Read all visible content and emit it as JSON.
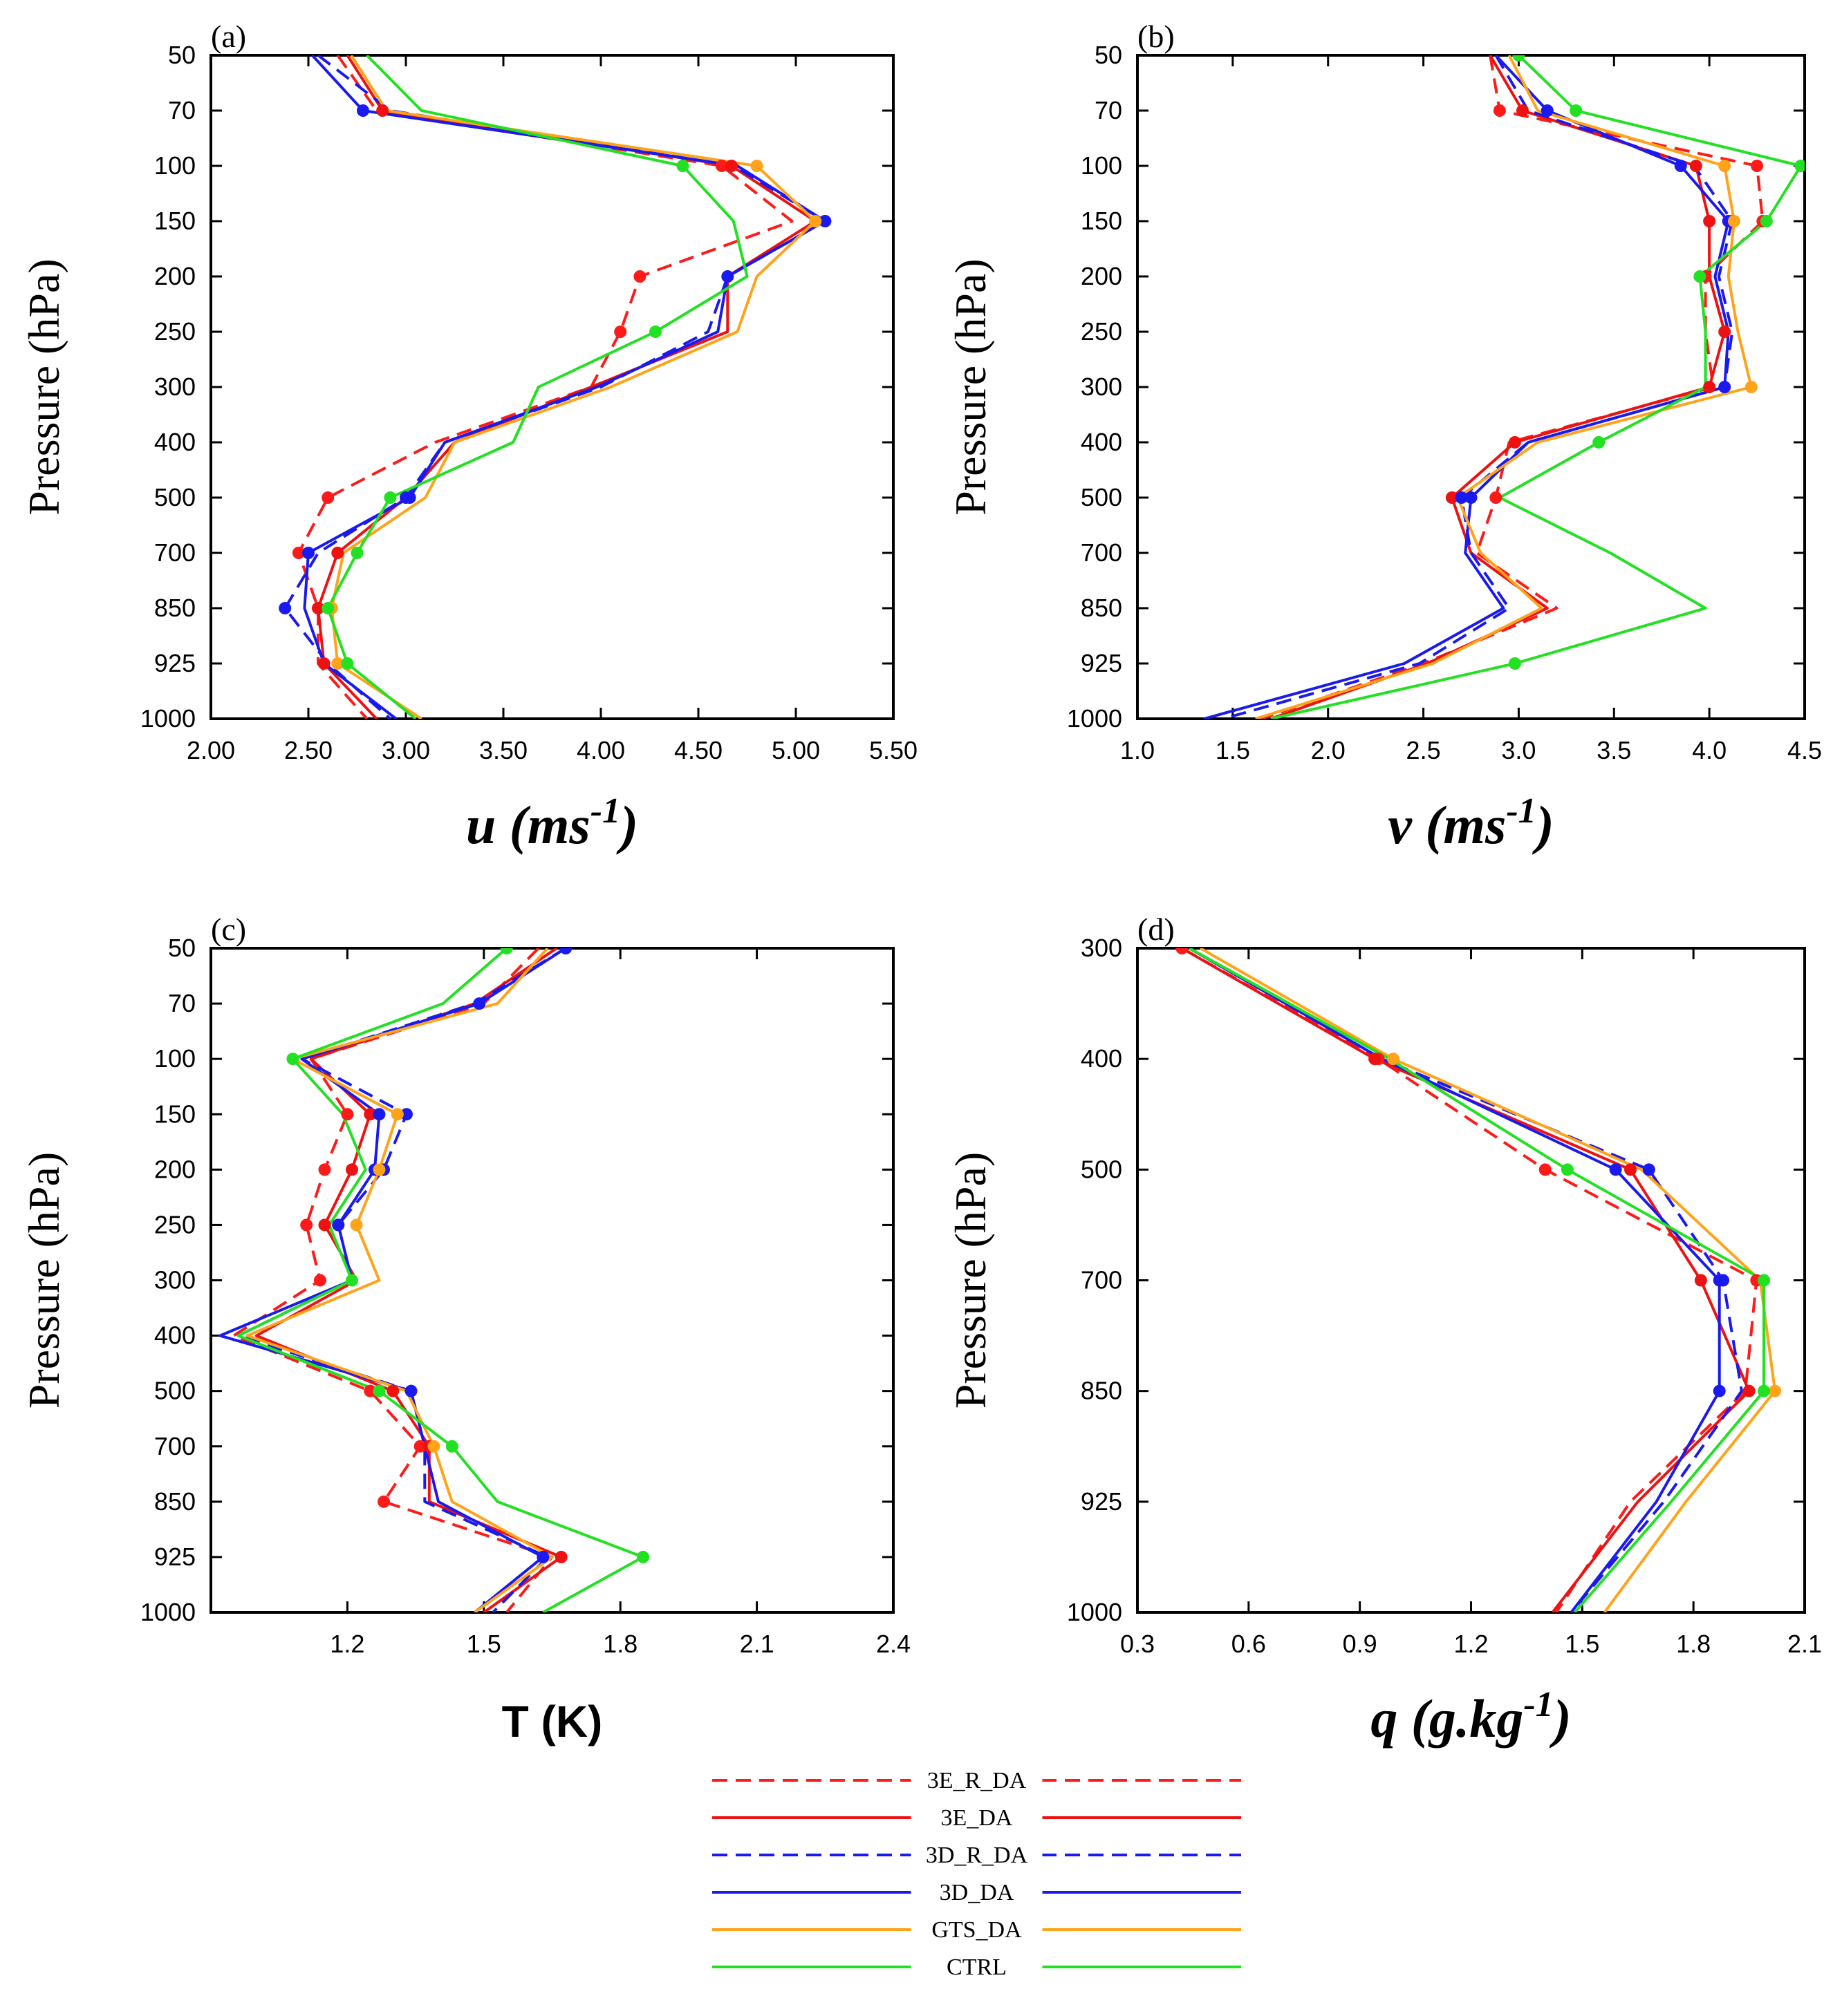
{
  "colors": {
    "3E_R_DA": "#ff1a1a",
    "3E_DA": "#ee1111",
    "3D_R_DA": "#1a1aee",
    "3D_DA": "#1a1aee",
    "GTS_DA": "#ffa31a",
    "CTRL": "#22e022"
  },
  "legend": [
    {
      "name": "3E_R_DA",
      "dash": true
    },
    {
      "name": "3E_DA",
      "dash": false
    },
    {
      "name": "3D_R_DA",
      "dash": true
    },
    {
      "name": "3D_DA",
      "dash": false
    },
    {
      "name": "GTS_DA",
      "dash": false
    },
    {
      "name": "CTRL",
      "dash": false
    }
  ],
  "chart_data": [
    {
      "type": "line",
      "panel_label": "(a)",
      "xlabel_main": "u",
      "xlabel_rest": " (ms",
      "xlabel_sup": "-1",
      "xlabel_close": ")",
      "ylabel": "Pressure (hPa)",
      "xlim": [
        2.0,
        5.5
      ],
      "xticks": [
        "2.00",
        "2.50",
        "3.00",
        "3.50",
        "4.00",
        "4.50",
        "5.00",
        "5.50"
      ],
      "xtick_values": [
        2.0,
        2.5,
        3.0,
        3.5,
        4.0,
        4.5,
        5.0,
        5.5
      ],
      "levels": [
        "50",
        "70",
        "100",
        "150",
        "200",
        "250",
        "300",
        "400",
        "500",
        "700",
        "850",
        "925",
        "1000"
      ],
      "series": [
        {
          "name": "3E_R_DA",
          "values": [
            2.65,
            2.85,
            4.62,
            4.98,
            4.2,
            4.1,
            3.95,
            3.15,
            2.6,
            2.45,
            2.55,
            2.55,
            2.8
          ],
          "markers": [
            2,
            4,
            5,
            8,
            9,
            10
          ]
        },
        {
          "name": "3E_DA",
          "values": [
            2.7,
            2.88,
            4.67,
            5.1,
            4.65,
            4.65,
            3.95,
            3.25,
            3.0,
            2.65,
            2.55,
            2.58,
            2.85
          ],
          "markers": [
            1,
            2,
            9,
            10,
            11
          ]
        },
        {
          "name": "3D_R_DA",
          "values": [
            2.55,
            2.92,
            4.68,
            5.15,
            4.65,
            4.55,
            4.0,
            3.2,
            3.0,
            2.55,
            2.38,
            2.6,
            2.92
          ],
          "markers": [
            3,
            8,
            10
          ]
        },
        {
          "name": "3D_DA",
          "values": [
            2.52,
            2.78,
            4.7,
            5.15,
            4.65,
            4.6,
            3.98,
            3.2,
            3.02,
            2.5,
            2.48,
            2.58,
            2.95
          ],
          "markers": [
            1,
            3,
            4,
            8,
            9
          ]
        },
        {
          "name": "GTS_DA",
          "values": [
            2.72,
            2.9,
            4.8,
            5.1,
            4.8,
            4.7,
            4.05,
            3.25,
            3.1,
            2.68,
            2.62,
            2.65,
            3.08
          ],
          "markers": [
            2,
            3,
            10,
            11
          ]
        },
        {
          "name": "CTRL",
          "values": [
            2.8,
            3.08,
            4.42,
            4.68,
            4.75,
            4.28,
            3.68,
            3.55,
            2.92,
            2.75,
            2.6,
            2.7,
            3.05
          ],
          "markers": [
            2,
            5,
            8,
            9,
            10,
            11
          ]
        }
      ]
    },
    {
      "type": "line",
      "panel_label": "(b)",
      "xlabel_main": "v",
      "xlabel_rest": " (ms",
      "xlabel_sup": "-1",
      "xlabel_close": ")",
      "ylabel": "Pressure (hPa)",
      "xlim": [
        1.0,
        4.5
      ],
      "xticks": [
        "1.0",
        "1.5",
        "2.0",
        "2.5",
        "3.0",
        "3.5",
        "4.0",
        "4.5"
      ],
      "xtick_values": [
        1.0,
        1.5,
        2.0,
        2.5,
        3.0,
        3.5,
        4.0,
        4.5
      ],
      "levels": [
        "50",
        "70",
        "100",
        "150",
        "200",
        "250",
        "300",
        "400",
        "500",
        "700",
        "850",
        "925",
        "1000"
      ],
      "series": [
        {
          "name": "3E_R_DA",
          "values": [
            2.85,
            2.9,
            4.25,
            4.28,
            3.98,
            3.98,
            4.02,
            2.95,
            2.88,
            2.78,
            3.2,
            2.5,
            1.65
          ],
          "markers": [
            1,
            2,
            3,
            4,
            8
          ]
        },
        {
          "name": "3E_DA",
          "values": [
            2.85,
            3.02,
            3.93,
            4.0,
            4.0,
            4.08,
            4.0,
            2.98,
            2.65,
            2.75,
            3.15,
            2.52,
            1.7
          ],
          "markers": [
            1,
            2,
            3,
            5,
            6,
            7,
            8
          ]
        },
        {
          "name": "3D_R_DA",
          "values": [
            2.88,
            3.05,
            3.92,
            4.12,
            4.05,
            4.12,
            4.08,
            3.05,
            2.7,
            2.75,
            2.95,
            2.48,
            1.45
          ],
          "markers": [
            3,
            8
          ]
        },
        {
          "name": "3D_DA",
          "values": [
            2.88,
            3.15,
            3.85,
            4.1,
            4.03,
            4.1,
            4.08,
            3.05,
            2.75,
            2.72,
            2.92,
            2.4,
            1.35
          ],
          "markers": [
            1,
            2,
            3,
            6,
            8
          ]
        },
        {
          "name": "GTS_DA",
          "values": [
            2.95,
            3.1,
            4.08,
            4.13,
            4.1,
            4.15,
            4.22,
            3.1,
            2.68,
            2.8,
            3.12,
            2.55,
            1.62
          ],
          "markers": [
            2,
            3,
            6
          ]
        },
        {
          "name": "CTRL",
          "values": [
            3.0,
            3.3,
            4.48,
            4.3,
            3.95,
            3.98,
            3.98,
            3.42,
            2.9,
            3.48,
            3.98,
            2.98,
            1.7
          ],
          "markers": [
            0,
            1,
            2,
            3,
            4,
            7,
            11
          ]
        }
      ]
    },
    {
      "type": "line",
      "panel_label": "(c)",
      "xlabel_plain": "T (K)",
      "ylabel": "Pressure (hPa)",
      "xlim": [
        0.9,
        2.4
      ],
      "xticks": [
        "1.2",
        "1.5",
        "1.8",
        "2.1",
        "2.4"
      ],
      "xtick_values": [
        1.2,
        1.5,
        1.8,
        2.1,
        2.4
      ],
      "levels": [
        "50",
        "70",
        "100",
        "150",
        "200",
        "250",
        "300",
        "400",
        "500",
        "700",
        "850",
        "925",
        "1000"
      ],
      "series": [
        {
          "name": "3E_R_DA",
          "values": [
            1.62,
            1.5,
            1.12,
            1.2,
            1.15,
            1.11,
            1.14,
            0.95,
            1.25,
            1.36,
            1.28,
            1.65,
            1.55
          ],
          "markers": [
            3,
            4,
            5,
            6,
            8,
            9,
            10
          ]
        },
        {
          "name": "3E_DA",
          "values": [
            1.66,
            1.48,
            1.12,
            1.25,
            1.21,
            1.15,
            1.22,
            1.0,
            1.3,
            1.38,
            1.38,
            1.67,
            1.5
          ],
          "markers": [
            3,
            4,
            5,
            8,
            9,
            11
          ]
        },
        {
          "name": "3D_R_DA",
          "values": [
            1.68,
            1.48,
            1.1,
            1.33,
            1.28,
            1.18,
            1.21,
            0.96,
            1.34,
            1.37,
            1.37,
            1.64,
            1.52
          ],
          "markers": [
            3,
            4,
            5
          ]
        },
        {
          "name": "3D_DA",
          "values": [
            1.68,
            1.49,
            1.1,
            1.27,
            1.26,
            1.18,
            1.21,
            0.92,
            1.34,
            1.37,
            1.4,
            1.63,
            1.48
          ],
          "markers": [
            0,
            1,
            3,
            4,
            5,
            8,
            11
          ]
        },
        {
          "name": "GTS_DA",
          "values": [
            1.64,
            1.53,
            1.08,
            1.31,
            1.27,
            1.22,
            1.27,
            0.98,
            1.33,
            1.39,
            1.43,
            1.65,
            1.48
          ],
          "markers": [
            3,
            4,
            5,
            9
          ]
        },
        {
          "name": "CTRL",
          "values": [
            1.55,
            1.41,
            1.08,
            1.19,
            1.24,
            1.16,
            1.21,
            0.96,
            1.27,
            1.43,
            1.53,
            1.85,
            1.63
          ],
          "markers": [
            0,
            2,
            6,
            8,
            9,
            11
          ]
        }
      ]
    },
    {
      "type": "line",
      "panel_label": "(d)",
      "xlabel_main": "q",
      "xlabel_rest": " (g.kg",
      "xlabel_sup": "-1",
      "xlabel_close": ")",
      "ylabel": "Pressure (hPa)",
      "xlim": [
        0.3,
        2.1
      ],
      "xticks": [
        "0.3",
        "0.6",
        "0.9",
        "1.2",
        "1.5",
        "1.8",
        "2.1"
      ],
      "xtick_values": [
        0.3,
        0.6,
        0.9,
        1.2,
        1.5,
        1.8,
        2.1
      ],
      "levels": [
        "300",
        "400",
        "500",
        "700",
        "850",
        "925",
        "1000"
      ],
      "series": [
        {
          "name": "3E_R_DA",
          "values": [
            0.42,
            0.95,
            1.4,
            1.97,
            1.94,
            1.63,
            1.43
          ],
          "markers": [
            0,
            1,
            2,
            3
          ]
        },
        {
          "name": "3E_DA",
          "values": [
            0.42,
            0.94,
            1.63,
            1.82,
            1.95,
            1.65,
            1.42
          ],
          "markers": [
            1,
            2,
            3,
            4
          ]
        },
        {
          "name": "3D_R_DA",
          "values": [
            0.44,
            0.96,
            1.68,
            1.88,
            1.93,
            1.72,
            1.47
          ],
          "markers": [
            2,
            3
          ]
        },
        {
          "name": "3D_DA",
          "values": [
            0.44,
            0.96,
            1.59,
            1.87,
            1.87,
            1.7,
            1.47
          ],
          "markers": [
            2,
            3,
            4
          ]
        },
        {
          "name": "GTS_DA",
          "values": [
            0.47,
            0.99,
            1.66,
            1.98,
            2.02,
            1.78,
            1.56
          ],
          "markers": [
            1,
            4
          ]
        },
        {
          "name": "CTRL",
          "values": [
            0.44,
            0.98,
            1.46,
            1.99,
            1.99,
            1.74,
            1.48
          ],
          "markers": [
            2,
            3,
            4
          ]
        }
      ]
    }
  ]
}
